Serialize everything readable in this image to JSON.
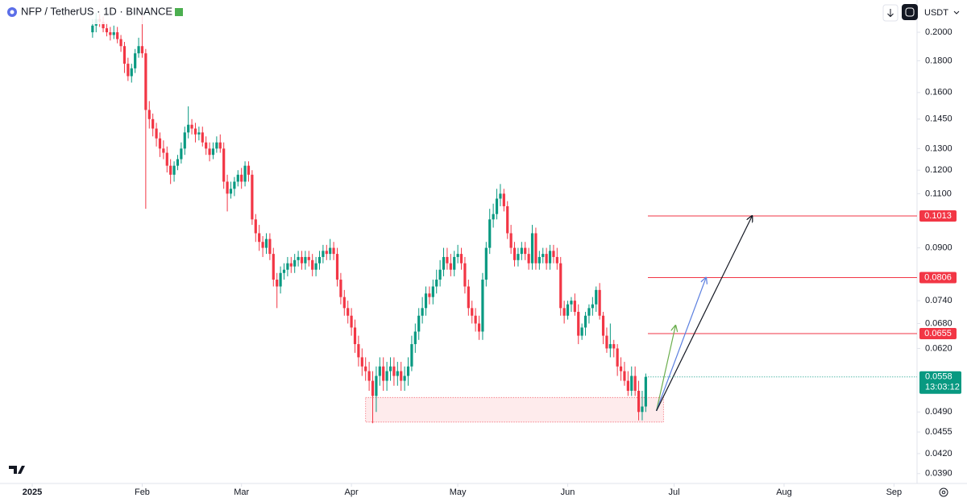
{
  "header": {
    "title": "NFP / TetherUS · 1D · BINANCE",
    "currency": "USDT"
  },
  "chart_data": {
    "type": "candlestick",
    "log_scale": true,
    "up_color": "#089981",
    "down_color": "#f23645",
    "xlim": [
      -9.1,
      249.5
    ],
    "ylim": [
      0.0376,
      0.2254
    ],
    "xticks": [
      {
        "value": 0,
        "label": "2025"
      },
      {
        "value": 31,
        "label": "Feb"
      },
      {
        "value": 59,
        "label": "Mar"
      },
      {
        "value": 90,
        "label": "Apr"
      },
      {
        "value": 120,
        "label": "May"
      },
      {
        "value": 151,
        "label": "Jun"
      },
      {
        "value": 181,
        "label": "Jul"
      },
      {
        "value": 212,
        "label": "Aug"
      },
      {
        "value": 243,
        "label": "Sep"
      }
    ],
    "yticks": [
      {
        "value": 0.2,
        "label": "0.2000"
      },
      {
        "value": 0.18,
        "label": "0.1800"
      },
      {
        "value": 0.16,
        "label": "0.1600"
      },
      {
        "value": 0.145,
        "label": "0.1450"
      },
      {
        "value": 0.13,
        "label": "0.1300"
      },
      {
        "value": 0.12,
        "label": "0.1200"
      },
      {
        "value": 0.11,
        "label": "0.1100"
      },
      {
        "value": 0.09,
        "label": "0.0900"
      },
      {
        "value": 0.074,
        "label": "0.0740"
      },
      {
        "value": 0.068,
        "label": "0.0680"
      },
      {
        "value": 0.062,
        "label": "0.0620"
      },
      {
        "value": 0.049,
        "label": "0.0490"
      },
      {
        "value": 0.0455,
        "label": "0.0455"
      },
      {
        "value": 0.042,
        "label": "0.0420"
      },
      {
        "value": 0.039,
        "label": "0.0390"
      }
    ],
    "x": [
      17,
      18,
      19,
      20,
      21,
      22,
      23,
      24,
      25,
      26,
      27,
      28,
      29,
      30,
      31,
      32,
      33,
      34,
      35,
      36,
      37,
      38,
      39,
      40,
      41,
      42,
      43,
      44,
      45,
      46,
      47,
      48,
      49,
      50,
      51,
      52,
      53,
      54,
      55,
      56,
      57,
      58,
      59,
      60,
      61,
      62,
      63,
      64,
      65,
      66,
      67,
      68,
      69,
      70,
      71,
      72,
      73,
      74,
      75,
      76,
      77,
      78,
      79,
      80,
      81,
      82,
      83,
      84,
      85,
      86,
      87,
      88,
      89,
      90,
      91,
      92,
      93,
      94,
      95,
      96,
      97,
      98,
      99,
      100,
      101,
      102,
      103,
      104,
      105,
      106,
      107,
      108,
      109,
      110,
      111,
      112,
      113,
      114,
      115,
      116,
      117,
      118,
      119,
      120,
      121,
      122,
      123,
      124,
      125,
      126,
      127,
      128,
      129,
      130,
      131,
      132,
      133,
      134,
      135,
      136,
      137,
      138,
      139,
      140,
      141,
      142,
      143,
      144,
      145,
      146,
      147,
      148,
      149,
      150,
      151,
      152,
      153,
      154,
      155,
      156,
      157,
      158,
      159,
      160,
      161,
      162,
      163,
      164,
      165,
      166,
      167,
      168,
      169,
      170,
      171,
      172,
      173
    ],
    "open": [
      0.2,
      0.205,
      0.21,
      0.208,
      0.203,
      0.2,
      0.198,
      0.2,
      0.195,
      0.19,
      0.178,
      0.17,
      0.175,
      0.185,
      0.19,
      0.185,
      0.15,
      0.145,
      0.14,
      0.135,
      0.13,
      0.128,
      0.122,
      0.118,
      0.122,
      0.125,
      0.13,
      0.138,
      0.142,
      0.14,
      0.137,
      0.138,
      0.133,
      0.13,
      0.127,
      0.13,
      0.133,
      0.13,
      0.115,
      0.11,
      0.112,
      0.115,
      0.118,
      0.115,
      0.122,
      0.118,
      0.1,
      0.095,
      0.092,
      0.09,
      0.093,
      0.088,
      0.08,
      0.078,
      0.082,
      0.083,
      0.085,
      0.084,
      0.086,
      0.087,
      0.085,
      0.087,
      0.086,
      0.083,
      0.085,
      0.087,
      0.089,
      0.088,
      0.09,
      0.088,
      0.08,
      0.075,
      0.072,
      0.07,
      0.067,
      0.063,
      0.06,
      0.058,
      0.057,
      0.055,
      0.052,
      0.056,
      0.058,
      0.055,
      0.057,
      0.058,
      0.056,
      0.057,
      0.055,
      0.056,
      0.058,
      0.063,
      0.066,
      0.07,
      0.072,
      0.076,
      0.075,
      0.078,
      0.08,
      0.083,
      0.087,
      0.085,
      0.083,
      0.087,
      0.088,
      0.085,
      0.078,
      0.072,
      0.07,
      0.068,
      0.066,
      0.08,
      0.09,
      0.1,
      0.102,
      0.108,
      0.11,
      0.105,
      0.095,
      0.09,
      0.086,
      0.088,
      0.09,
      0.088,
      0.085,
      0.095,
      0.085,
      0.087,
      0.088,
      0.085,
      0.089,
      0.087,
      0.085,
      0.072,
      0.07,
      0.073,
      0.074,
      0.071,
      0.065,
      0.067,
      0.07,
      0.072,
      0.073,
      0.077,
      0.07,
      0.065,
      0.062,
      0.063,
      0.062,
      0.058,
      0.057,
      0.055,
      0.053,
      0.056,
      0.053,
      0.049,
      0.05
    ],
    "high": [
      0.21,
      0.215,
      0.214,
      0.212,
      0.207,
      0.204,
      0.205,
      0.204,
      0.198,
      0.193,
      0.182,
      0.178,
      0.188,
      0.196,
      0.213,
      0.188,
      0.155,
      0.148,
      0.143,
      0.138,
      0.134,
      0.131,
      0.125,
      0.124,
      0.127,
      0.133,
      0.141,
      0.152,
      0.145,
      0.143,
      0.141,
      0.141,
      0.136,
      0.133,
      0.133,
      0.136,
      0.137,
      0.133,
      0.118,
      0.115,
      0.117,
      0.12,
      0.121,
      0.124,
      0.124,
      0.12,
      0.102,
      0.098,
      0.094,
      0.095,
      0.095,
      0.09,
      0.082,
      0.084,
      0.085,
      0.087,
      0.087,
      0.088,
      0.089,
      0.089,
      0.089,
      0.089,
      0.088,
      0.087,
      0.089,
      0.091,
      0.091,
      0.093,
      0.092,
      0.09,
      0.082,
      0.077,
      0.074,
      0.072,
      0.069,
      0.065,
      0.062,
      0.06,
      0.059,
      0.057,
      0.058,
      0.06,
      0.06,
      0.059,
      0.06,
      0.06,
      0.059,
      0.059,
      0.058,
      0.06,
      0.065,
      0.068,
      0.072,
      0.075,
      0.078,
      0.078,
      0.08,
      0.083,
      0.086,
      0.09,
      0.09,
      0.088,
      0.089,
      0.091,
      0.09,
      0.087,
      0.08,
      0.074,
      0.072,
      0.07,
      0.082,
      0.092,
      0.104,
      0.106,
      0.112,
      0.114,
      0.112,
      0.107,
      0.098,
      0.092,
      0.09,
      0.092,
      0.092,
      0.09,
      0.098,
      0.097,
      0.089,
      0.09,
      0.09,
      0.091,
      0.091,
      0.09,
      0.087,
      0.074,
      0.074,
      0.075,
      0.076,
      0.073,
      0.068,
      0.071,
      0.073,
      0.075,
      0.078,
      0.079,
      0.071,
      0.067,
      0.068,
      0.064,
      0.063,
      0.06,
      0.059,
      0.057,
      0.058,
      0.058,
      0.055,
      0.053,
      0.0565
    ],
    "low": [
      0.196,
      0.2,
      0.204,
      0.2,
      0.197,
      0.194,
      0.195,
      0.192,
      0.186,
      0.172,
      0.167,
      0.166,
      0.172,
      0.182,
      0.182,
      0.104,
      0.14,
      0.136,
      0.131,
      0.126,
      0.125,
      0.119,
      0.114,
      0.115,
      0.12,
      0.123,
      0.127,
      0.135,
      0.137,
      0.133,
      0.134,
      0.131,
      0.127,
      0.124,
      0.125,
      0.128,
      0.128,
      0.112,
      0.103,
      0.108,
      0.109,
      0.113,
      0.112,
      0.113,
      0.115,
      0.098,
      0.092,
      0.089,
      0.087,
      0.088,
      0.086,
      0.078,
      0.072,
      0.076,
      0.08,
      0.081,
      0.082,
      0.082,
      0.084,
      0.083,
      0.083,
      0.084,
      0.081,
      0.081,
      0.083,
      0.085,
      0.086,
      0.086,
      0.086,
      0.078,
      0.073,
      0.07,
      0.068,
      0.065,
      0.061,
      0.058,
      0.056,
      0.055,
      0.053,
      0.047,
      0.049,
      0.054,
      0.053,
      0.053,
      0.055,
      0.054,
      0.054,
      0.053,
      0.053,
      0.054,
      0.057,
      0.061,
      0.064,
      0.068,
      0.07,
      0.073,
      0.073,
      0.076,
      0.078,
      0.081,
      0.083,
      0.081,
      0.081,
      0.085,
      0.083,
      0.076,
      0.07,
      0.068,
      0.066,
      0.064,
      0.064,
      0.078,
      0.088,
      0.097,
      0.1,
      0.105,
      0.103,
      0.093,
      0.088,
      0.084,
      0.084,
      0.086,
      0.086,
      0.083,
      0.083,
      0.083,
      0.083,
      0.085,
      0.083,
      0.083,
      0.085,
      0.083,
      0.07,
      0.068,
      0.069,
      0.071,
      0.07,
      0.063,
      0.064,
      0.065,
      0.068,
      0.07,
      0.071,
      0.069,
      0.063,
      0.061,
      0.06,
      0.06,
      0.056,
      0.055,
      0.054,
      0.052,
      0.052,
      0.052,
      0.0475,
      0.0475,
      0.049
    ],
    "close": [
      0.205,
      0.21,
      0.208,
      0.203,
      0.2,
      0.198,
      0.2,
      0.195,
      0.19,
      0.178,
      0.17,
      0.175,
      0.185,
      0.19,
      0.185,
      0.15,
      0.145,
      0.14,
      0.135,
      0.13,
      0.128,
      0.122,
      0.118,
      0.122,
      0.125,
      0.13,
      0.138,
      0.142,
      0.14,
      0.137,
      0.138,
      0.133,
      0.13,
      0.127,
      0.13,
      0.133,
      0.13,
      0.115,
      0.11,
      0.112,
      0.115,
      0.118,
      0.115,
      0.122,
      0.118,
      0.1,
      0.095,
      0.092,
      0.09,
      0.093,
      0.088,
      0.08,
      0.078,
      0.082,
      0.083,
      0.085,
      0.084,
      0.086,
      0.087,
      0.085,
      0.087,
      0.086,
      0.083,
      0.085,
      0.087,
      0.089,
      0.088,
      0.09,
      0.088,
      0.08,
      0.075,
      0.072,
      0.07,
      0.067,
      0.063,
      0.06,
      0.058,
      0.057,
      0.055,
      0.052,
      0.056,
      0.058,
      0.055,
      0.057,
      0.058,
      0.056,
      0.057,
      0.055,
      0.056,
      0.058,
      0.063,
      0.066,
      0.07,
      0.072,
      0.076,
      0.075,
      0.078,
      0.08,
      0.083,
      0.087,
      0.085,
      0.083,
      0.087,
      0.088,
      0.085,
      0.078,
      0.072,
      0.07,
      0.068,
      0.066,
      0.08,
      0.09,
      0.1,
      0.102,
      0.108,
      0.11,
      0.105,
      0.095,
      0.09,
      0.086,
      0.088,
      0.09,
      0.088,
      0.085,
      0.095,
      0.085,
      0.087,
      0.088,
      0.085,
      0.089,
      0.087,
      0.085,
      0.072,
      0.07,
      0.073,
      0.074,
      0.071,
      0.065,
      0.067,
      0.07,
      0.072,
      0.073,
      0.077,
      0.07,
      0.065,
      0.062,
      0.063,
      0.062,
      0.058,
      0.057,
      0.055,
      0.053,
      0.056,
      0.053,
      0.049,
      0.05,
      0.0558
    ],
    "levels": [
      0.1013,
      0.0806,
      0.0655
    ],
    "level_color": "#f23645",
    "level_start": 173.6,
    "last_price": 0.0558,
    "countdown": "13:03:12",
    "zone": {
      "x": [
        94,
        178
      ],
      "y": [
        0.0472,
        0.0517
      ]
    },
    "arrows": [
      {
        "color": "#6cae4e",
        "x": [
          176,
          181.4
        ],
        "y": [
          0.0492,
          0.0675
        ]
      },
      {
        "color": "#5b7fe0",
        "x": [
          176,
          190
        ],
        "y": [
          0.0492,
          0.0806
        ]
      },
      {
        "color": "#131722",
        "x": [
          176,
          203
        ],
        "y": [
          0.0492,
          0.1013
        ]
      }
    ]
  }
}
